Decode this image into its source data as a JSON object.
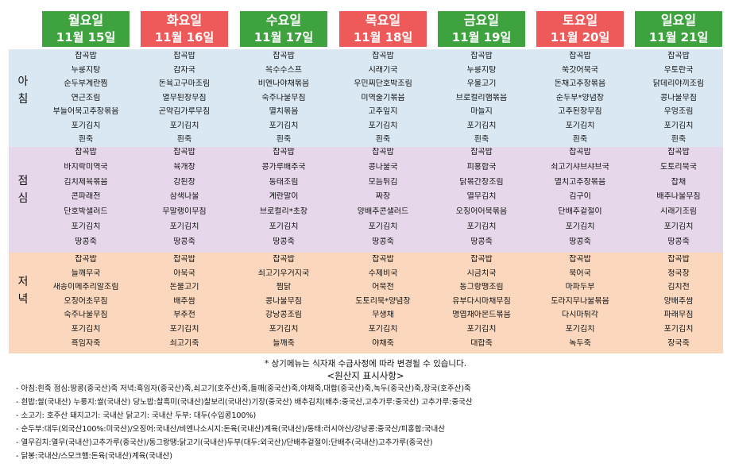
{
  "days": [
    {
      "name": "월요일",
      "date": "11월  15일",
      "color": "green",
      "breakfast": [
        "잡곡밥",
        "누룽지탕",
        "순두부계란찜",
        "연근조림",
        "부들어묵고추장볶음",
        "포기김치",
        "흰죽"
      ],
      "lunch": [
        "잡곡밥",
        "바지락미역국",
        "김치제육볶음",
        "콘파래전",
        "단호박샐러드",
        "포기김치",
        "땅콩죽"
      ],
      "dinner": [
        "잡곡밥",
        "들깨무국",
        "새송이메추리알조림",
        "오징어초무침",
        "숙주나물무침",
        "포기김치",
        "흑임자죽"
      ]
    },
    {
      "name": "화요일",
      "date": "11월  16일",
      "color": "red",
      "breakfast": [
        "잡곡밥",
        "감자국",
        "돈육고구마조림",
        "열무된장무침",
        "곤약김가루무침",
        "포기김치",
        "흰죽"
      ],
      "lunch": [
        "잡곡밥",
        "육개장",
        "강된장",
        "삼색나물",
        "무말랭이무침",
        "포기김치",
        "땅콩죽"
      ],
      "dinner": [
        "잡곡밥",
        "아욱국",
        "돈불고기",
        "배추쌈",
        "부추전",
        "포기김치",
        "쇠고기죽"
      ]
    },
    {
      "name": "수요일",
      "date": "11월  17일",
      "color": "green",
      "breakfast": [
        "잡곡밥",
        "옥수수스프",
        "비엔나야채볶음",
        "숙주나물무침",
        "멸치볶음",
        "포기김치",
        "흰죽"
      ],
      "lunch": [
        "잡곡밥",
        "콩가루배추국",
        "동태조림",
        "계란말이",
        "브로컬리*초장",
        "포기김치",
        "땅콩죽"
      ],
      "dinner": [
        "잡곡밥",
        "쇠고기우거지국",
        "찜닭",
        "콩나물무침",
        "강낭콩조림",
        "포기김치",
        "들깨죽"
      ]
    },
    {
      "name": "목요일",
      "date": "11월  18일",
      "color": "red",
      "breakfast": [
        "잡곡밥",
        "시래기국",
        "우민찌단호박조림",
        "미역줄기볶음",
        "고추잎지",
        "포기김치",
        "흰죽"
      ],
      "lunch": [
        "잡곡밥",
        "콩나물국",
        "모듬튀김",
        "짜장",
        "양배추콘샐러드",
        "포기김치",
        "땅콩죽"
      ],
      "dinner": [
        "잡곡밥",
        "수제비국",
        "어묵전",
        "도토리묵*양념장",
        "무생채",
        "포기김치",
        "야채죽"
      ]
    },
    {
      "name": "금요일",
      "date": "11월  19일",
      "color": "green",
      "breakfast": [
        "잡곡밥",
        "누룽지탕",
        "우불고기",
        "브로컬리햄볶음",
        "마늘지",
        "포기김치",
        "흰죽"
      ],
      "lunch": [
        "잡곡밥",
        "피홍합국",
        "닭볶간장조림",
        "열무김치",
        "오징어어묵볶음",
        "포기김치",
        "땅콩죽"
      ],
      "dinner": [
        "잡곡밥",
        "시금치국",
        "동그랑땡조림",
        "유부다시마채무침",
        "명엽채아몬드볶음",
        "포기김치",
        "대합죽"
      ]
    },
    {
      "name": "토요일",
      "date": "11월  20일",
      "color": "red",
      "breakfast": [
        "잡곡밥",
        "쑥갓어묵국",
        "돈채고추장볶음",
        "순두부*양념장",
        "고추된장무침",
        "포기김치",
        "흰죽"
      ],
      "lunch": [
        "잡곡밥",
        "쇠고기샤브샤브국",
        "멸치고추장볶음",
        "김구이",
        "단배추겉절이",
        "포기김치",
        "땅콩죽"
      ],
      "dinner": [
        "잡곡밥",
        "북어국",
        "마파두부",
        "도라지무나물볶음",
        "다시마튀각",
        "포기김치",
        "녹두죽"
      ]
    },
    {
      "name": "일요일",
      "date": "11월  21일",
      "color": "green",
      "breakfast": [
        "잡곡밥",
        "우토란국",
        "닭데리야끼조림",
        "콩나물무침",
        "우엉조림",
        "포기김치",
        "흰죽"
      ],
      "lunch": [
        "잡곡밥",
        "도토리묵국",
        "잡채",
        "배추나물무침",
        "시래기조림",
        "포기김치",
        "땅콩죽"
      ],
      "dinner": [
        "잡곡밥",
        "청국장",
        "김치전",
        "양배추쌈",
        "파래무침",
        "포기김치",
        "장국죽"
      ]
    }
  ],
  "meal_labels": {
    "breakfast": [
      "아",
      "침"
    ],
    "lunch": [
      "점",
      "심"
    ],
    "dinner": [
      "저",
      "녁"
    ]
  },
  "colors": {
    "header_green": "#3ea33e",
    "header_red": "#ee5a5a",
    "breakfast_bg": "#d9e8f3",
    "lunch_bg": "#e6d8ea",
    "dinner_bg": "#fbd8bd"
  },
  "notice": "*  상기메뉴는 식자재 수급사정에 따라 변경될 수 있습니다.",
  "origin_title": "<원산지 표시사항>",
  "origin_lines": [
    "- 아침:흰죽  점심:땅콩(중국산)죽  저녁:흑임자(중국산)죽,쇠고기(호주산)죽,들깨(중국산)죽,야채죽,대합(중국산)죽,녹두(중국산)죽,장국(호주산)죽",
    "- 흰밥:쌀(국내산)  누룽지:쌀(국내산) 당노밥:찰흑미(국내산)찰보리(국내산)기장(중국산)  배추김치(배추:중국산,고추가루:중국산)  고추가루:중국산",
    "- 소고기:  호주산  돼지고기:  국내산  닭고기:  국내산   두부:  대두(수입콩100%)",
    "- 순두부:대두(외국산100%:미국산)/오징어:국내산/비엔나소시지:돈육(국내산)계육(국내산)/동태:러시아산/강낭콩:중국산/피홍합:국내산",
    "- 열무김치:열무(국내산)고추가루(중국산)/동그랑땡:닭고기(국내산)두부(대두:외국산)/단배추겉절이:단배추(국내산)고추가루(중국산)",
    "- 닭봉:국내산/스모크햄:돈육(국내산)계육(국내산)"
  ]
}
